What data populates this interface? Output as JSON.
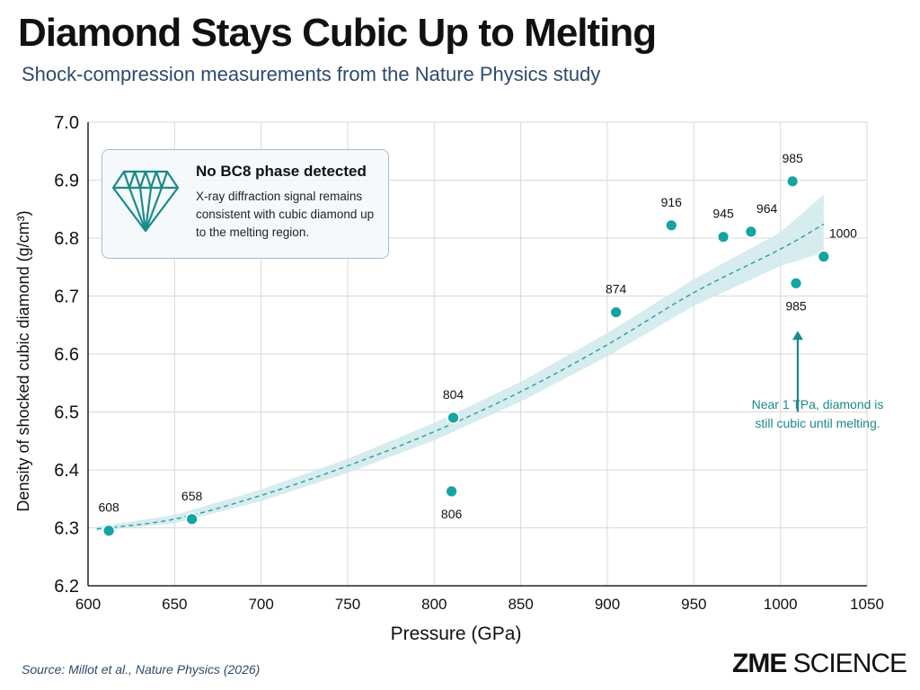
{
  "header": {
    "title": "Diamond Stays Cubic Up to Melting",
    "subtitle": "Shock-compression measurements from the Nature Physics study"
  },
  "callout": {
    "title": "No BC8 phase detected",
    "text": "X-ray diffraction signal remains consistent with cubic diamond up to the melting region.",
    "icon": "diamond-icon"
  },
  "annotation": {
    "text": "Near 1 TPa, diamond is still cubic until melting."
  },
  "footer": {
    "source": "Source: Millot et al., Nature Physics (2026)",
    "logo_bold": "ZME",
    "logo_light": "SCIENCE"
  },
  "colors": {
    "point": "#16a3a3",
    "trend": "#2a9d9d",
    "band": "#cfe9ec",
    "annotation": "#1a8a8a",
    "grid": "#d9d9d9"
  },
  "chart_data": {
    "type": "scatter",
    "xlabel": "Pressure (GPa)",
    "ylabel": "Density of shocked cubic diamond (g/cm³)",
    "xlim": [
      600,
      1050
    ],
    "ylim": [
      6.2,
      7.0
    ],
    "xticks": [
      600,
      650,
      700,
      750,
      800,
      850,
      900,
      950,
      1000,
      1050
    ],
    "yticks": [
      6.2,
      6.3,
      6.4,
      6.5,
      6.6,
      6.7,
      6.8,
      6.9,
      7.0
    ],
    "grid": true,
    "points": [
      {
        "label": "608",
        "x": 612,
        "y": 6.295,
        "label_pos": "above"
      },
      {
        "label": "658",
        "x": 660,
        "y": 6.315,
        "label_pos": "above"
      },
      {
        "label": "804",
        "x": 811,
        "y": 6.49,
        "label_pos": "above"
      },
      {
        "label": "806",
        "x": 810,
        "y": 6.363,
        "label_pos": "below"
      },
      {
        "label": "874",
        "x": 905,
        "y": 6.672,
        "label_pos": "above"
      },
      {
        "label": "916",
        "x": 937,
        "y": 6.822,
        "label_pos": "above"
      },
      {
        "label": "945",
        "x": 967,
        "y": 6.802,
        "label_pos": "above"
      },
      {
        "label": "964",
        "x": 983,
        "y": 6.811,
        "label_pos": "above-right"
      },
      {
        "label": "985",
        "x": 1007,
        "y": 6.898,
        "label_pos": "above"
      },
      {
        "label": "985",
        "x": 1009,
        "y": 6.722,
        "label_pos": "below"
      },
      {
        "label": "1000",
        "x": 1025,
        "y": 6.768,
        "label_pos": "above-right"
      }
    ],
    "trend": {
      "x": [
        605,
        650,
        700,
        750,
        800,
        850,
        900,
        950,
        1000,
        1025
      ],
      "y": [
        6.298,
        6.315,
        6.356,
        6.407,
        6.466,
        6.535,
        6.616,
        6.706,
        6.781,
        6.824
      ],
      "band_upper": [
        6.302,
        6.322,
        6.366,
        6.419,
        6.481,
        6.552,
        6.636,
        6.729,
        6.81,
        6.875
      ],
      "band_lower": [
        6.294,
        6.308,
        6.346,
        6.395,
        6.451,
        6.518,
        6.596,
        6.683,
        6.752,
        6.775
      ]
    },
    "arrow": {
      "x": 1010,
      "y_from": 6.5,
      "y_to": 6.64
    }
  }
}
